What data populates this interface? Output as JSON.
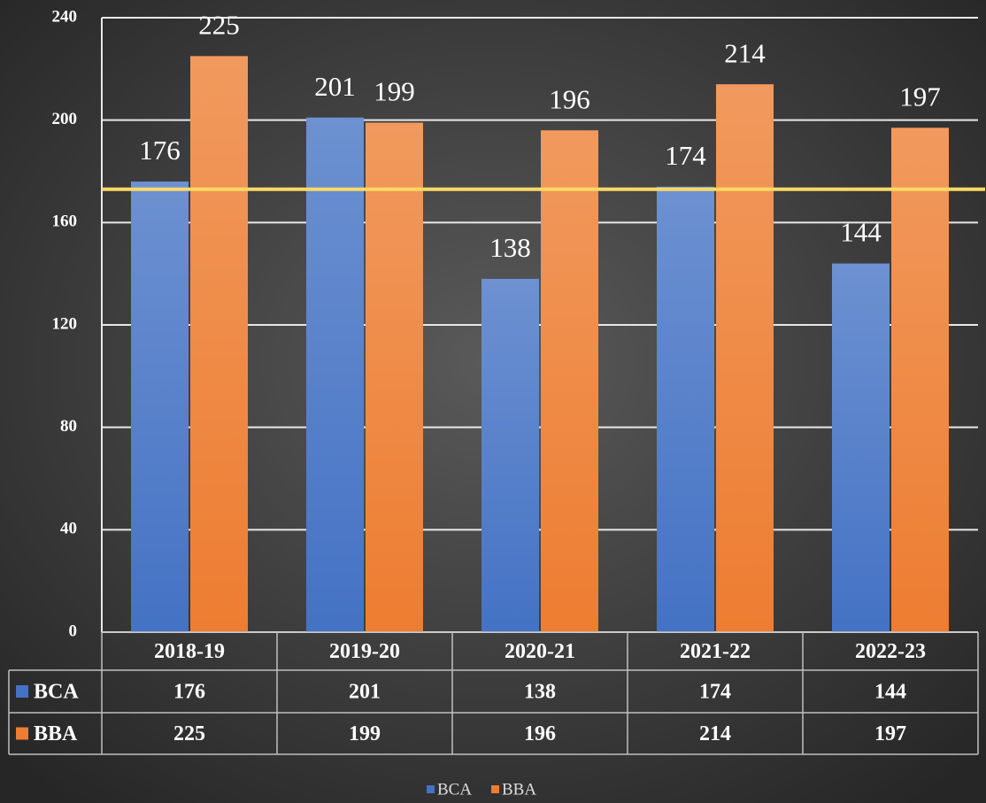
{
  "chart_data": {
    "type": "bar",
    "categories": [
      "2018-19",
      "2019-20",
      "2020-21",
      "2021-22",
      "2022-23"
    ],
    "series": [
      {
        "name": "BCA",
        "color": "#4472c4",
        "values": [
          176,
          201,
          138,
          174,
          144
        ]
      },
      {
        "name": "BBA",
        "color": "#ed7d31",
        "values": [
          225,
          199,
          196,
          214,
          197
        ]
      }
    ],
    "ylim": [
      0,
      240
    ],
    "yticks": [
      0,
      40,
      80,
      120,
      160,
      200,
      240
    ],
    "grid": true,
    "reference_line": {
      "value": 173,
      "color": "#ffd966"
    },
    "data_table": true,
    "legend": "bottom"
  }
}
